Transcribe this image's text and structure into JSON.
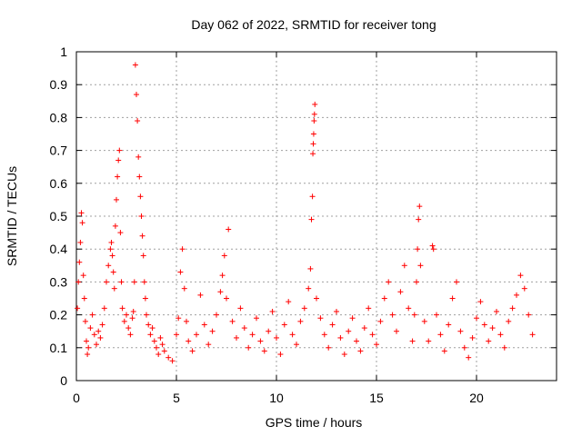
{
  "chart_data": {
    "type": "scatter",
    "title": "Day 062 of 2022, SRMTID for receiver tong",
    "xlabel": "GPS time / hours",
    "ylabel": "SRMTID / TECUs",
    "xlim": [
      0,
      24
    ],
    "ylim": [
      0,
      1
    ],
    "xticks": [
      0,
      5,
      10,
      15,
      20
    ],
    "xtick_labels": [
      "0",
      "5",
      "10",
      "15",
      "20"
    ],
    "yticks": [
      0,
      0.1,
      0.2,
      0.3,
      0.4,
      0.5,
      0.6,
      0.7,
      0.8,
      0.9,
      1
    ],
    "ytick_labels": [
      "0",
      "0.1",
      "0.2",
      "0.3",
      "0.4",
      "0.5",
      "0.6",
      "0.7",
      "0.8",
      "0.9",
      "1"
    ],
    "grid": true,
    "marker": "+",
    "color": "#ff0000",
    "series": [
      {
        "name": "SRMTID",
        "points": [
          [
            0.05,
            0.22
          ],
          [
            0.1,
            0.3
          ],
          [
            0.15,
            0.36
          ],
          [
            0.2,
            0.42
          ],
          [
            0.25,
            0.51
          ],
          [
            0.3,
            0.48
          ],
          [
            0.35,
            0.32
          ],
          [
            0.4,
            0.25
          ],
          [
            0.45,
            0.18
          ],
          [
            0.5,
            0.12
          ],
          [
            0.55,
            0.08
          ],
          [
            0.6,
            0.1
          ],
          [
            0.7,
            0.16
          ],
          [
            0.8,
            0.2
          ],
          [
            0.9,
            0.14
          ],
          [
            1.0,
            0.11
          ],
          [
            1.1,
            0.15
          ],
          [
            1.2,
            0.13
          ],
          [
            1.3,
            0.17
          ],
          [
            1.4,
            0.22
          ],
          [
            1.5,
            0.3
          ],
          [
            1.6,
            0.35
          ],
          [
            1.7,
            0.4
          ],
          [
            1.75,
            0.42
          ],
          [
            1.8,
            0.38
          ],
          [
            1.85,
            0.33
          ],
          [
            1.9,
            0.28
          ],
          [
            1.95,
            0.47
          ],
          [
            2.0,
            0.55
          ],
          [
            2.05,
            0.62
          ],
          [
            2.1,
            0.67
          ],
          [
            2.15,
            0.7
          ],
          [
            2.2,
            0.45
          ],
          [
            2.25,
            0.3
          ],
          [
            2.3,
            0.22
          ],
          [
            2.4,
            0.18
          ],
          [
            2.5,
            0.2
          ],
          [
            2.6,
            0.16
          ],
          [
            2.7,
            0.14
          ],
          [
            2.8,
            0.19
          ],
          [
            2.85,
            0.21
          ],
          [
            2.9,
            0.3
          ],
          [
            2.95,
            0.96
          ],
          [
            3.0,
            0.87
          ],
          [
            3.05,
            0.79
          ],
          [
            3.1,
            0.68
          ],
          [
            3.15,
            0.62
          ],
          [
            3.2,
            0.56
          ],
          [
            3.25,
            0.5
          ],
          [
            3.3,
            0.44
          ],
          [
            3.35,
            0.38
          ],
          [
            3.4,
            0.3
          ],
          [
            3.45,
            0.25
          ],
          [
            3.5,
            0.2
          ],
          [
            3.6,
            0.17
          ],
          [
            3.7,
            0.14
          ],
          [
            3.8,
            0.16
          ],
          [
            3.9,
            0.12
          ],
          [
            4.0,
            0.1
          ],
          [
            4.1,
            0.08
          ],
          [
            4.2,
            0.13
          ],
          [
            4.3,
            0.11
          ],
          [
            4.4,
            0.09
          ],
          [
            4.6,
            0.07
          ],
          [
            4.8,
            0.06
          ],
          [
            5.0,
            0.14
          ],
          [
            5.1,
            0.19
          ],
          [
            5.2,
            0.33
          ],
          [
            5.3,
            0.4
          ],
          [
            5.4,
            0.28
          ],
          [
            5.5,
            0.18
          ],
          [
            5.6,
            0.12
          ],
          [
            5.8,
            0.09
          ],
          [
            6.0,
            0.14
          ],
          [
            6.2,
            0.26
          ],
          [
            6.4,
            0.17
          ],
          [
            6.6,
            0.11
          ],
          [
            6.8,
            0.15
          ],
          [
            7.0,
            0.2
          ],
          [
            7.2,
            0.27
          ],
          [
            7.3,
            0.32
          ],
          [
            7.4,
            0.38
          ],
          [
            7.5,
            0.25
          ],
          [
            7.6,
            0.46
          ],
          [
            7.8,
            0.18
          ],
          [
            8.0,
            0.13
          ],
          [
            8.2,
            0.22
          ],
          [
            8.4,
            0.16
          ],
          [
            8.6,
            0.1
          ],
          [
            8.8,
            0.14
          ],
          [
            9.0,
            0.19
          ],
          [
            9.2,
            0.12
          ],
          [
            9.4,
            0.09
          ],
          [
            9.6,
            0.15
          ],
          [
            9.8,
            0.21
          ],
          [
            10.0,
            0.13
          ],
          [
            10.2,
            0.08
          ],
          [
            10.4,
            0.17
          ],
          [
            10.6,
            0.24
          ],
          [
            10.8,
            0.14
          ],
          [
            11.0,
            0.11
          ],
          [
            11.2,
            0.18
          ],
          [
            11.4,
            0.22
          ],
          [
            11.6,
            0.28
          ],
          [
            11.7,
            0.34
          ],
          [
            11.75,
            0.49
          ],
          [
            11.8,
            0.56
          ],
          [
            11.82,
            0.69
          ],
          [
            11.84,
            0.72
          ],
          [
            11.86,
            0.75
          ],
          [
            11.88,
            0.79
          ],
          [
            11.9,
            0.81
          ],
          [
            11.92,
            0.84
          ],
          [
            12.0,
            0.25
          ],
          [
            12.2,
            0.19
          ],
          [
            12.4,
            0.14
          ],
          [
            12.6,
            0.1
          ],
          [
            12.8,
            0.17
          ],
          [
            13.0,
            0.21
          ],
          [
            13.2,
            0.13
          ],
          [
            13.4,
            0.08
          ],
          [
            13.6,
            0.15
          ],
          [
            13.8,
            0.19
          ],
          [
            14.0,
            0.12
          ],
          [
            14.2,
            0.09
          ],
          [
            14.4,
            0.16
          ],
          [
            14.6,
            0.22
          ],
          [
            14.8,
            0.14
          ],
          [
            15.0,
            0.11
          ],
          [
            15.2,
            0.18
          ],
          [
            15.4,
            0.25
          ],
          [
            15.6,
            0.3
          ],
          [
            15.8,
            0.2
          ],
          [
            16.0,
            0.15
          ],
          [
            16.2,
            0.27
          ],
          [
            16.4,
            0.35
          ],
          [
            16.6,
            0.22
          ],
          [
            16.8,
            0.12
          ],
          [
            16.9,
            0.2
          ],
          [
            17.0,
            0.3
          ],
          [
            17.05,
            0.4
          ],
          [
            17.1,
            0.49
          ],
          [
            17.15,
            0.53
          ],
          [
            17.2,
            0.35
          ],
          [
            17.4,
            0.18
          ],
          [
            17.6,
            0.12
          ],
          [
            17.8,
            0.41
          ],
          [
            17.85,
            0.4
          ],
          [
            18.0,
            0.2
          ],
          [
            18.2,
            0.14
          ],
          [
            18.4,
            0.09
          ],
          [
            18.6,
            0.17
          ],
          [
            18.8,
            0.25
          ],
          [
            19.0,
            0.3
          ],
          [
            19.2,
            0.15
          ],
          [
            19.4,
            0.1
          ],
          [
            19.6,
            0.07
          ],
          [
            19.8,
            0.13
          ],
          [
            20.0,
            0.19
          ],
          [
            20.2,
            0.24
          ],
          [
            20.4,
            0.17
          ],
          [
            20.6,
            0.12
          ],
          [
            20.8,
            0.16
          ],
          [
            21.0,
            0.21
          ],
          [
            21.2,
            0.14
          ],
          [
            21.4,
            0.1
          ],
          [
            21.6,
            0.18
          ],
          [
            21.8,
            0.22
          ],
          [
            22.0,
            0.26
          ],
          [
            22.2,
            0.32
          ],
          [
            22.4,
            0.28
          ],
          [
            22.6,
            0.2
          ],
          [
            22.8,
            0.14
          ]
        ]
      }
    ]
  }
}
